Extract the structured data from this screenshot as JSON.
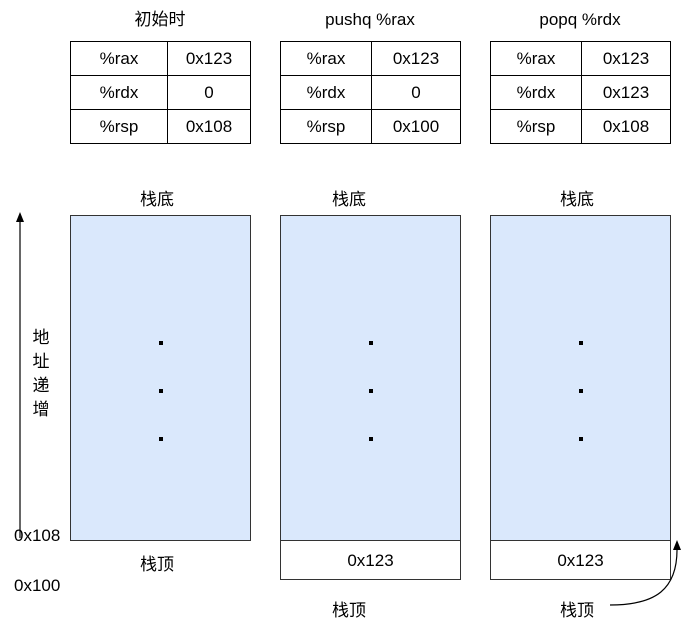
{
  "panels": [
    {
      "title": "初始时",
      "registers": [
        {
          "name": "%rax",
          "value": "0x123"
        },
        {
          "name": "%rdx",
          "value": "0"
        },
        {
          "name": "%rsp",
          "value": "0x108"
        }
      ],
      "stack_bottom_label": "栈底",
      "stack_top_label": "栈顶"
    },
    {
      "title": "pushq %rax",
      "registers": [
        {
          "name": "%rax",
          "value": "0x123"
        },
        {
          "name": "%rdx",
          "value": "0"
        },
        {
          "name": "%rsp",
          "value": "0x100"
        }
      ],
      "stack_bottom_label": "栈底",
      "pushed_value": "0x123",
      "stack_top_label": "栈顶"
    },
    {
      "title": "popq %rdx",
      "registers": [
        {
          "name": "%rax",
          "value": "0x123"
        },
        {
          "name": "%rdx",
          "value": "0x123"
        },
        {
          "name": "%rsp",
          "value": "0x108"
        }
      ],
      "stack_bottom_label": "栈底",
      "popped_value": "0x123",
      "stack_top_label": "栈顶"
    }
  ],
  "axis": {
    "label_chars": [
      "地",
      "址",
      "递",
      "增"
    ],
    "addr_high": "0x108",
    "addr_low": "0x100"
  }
}
